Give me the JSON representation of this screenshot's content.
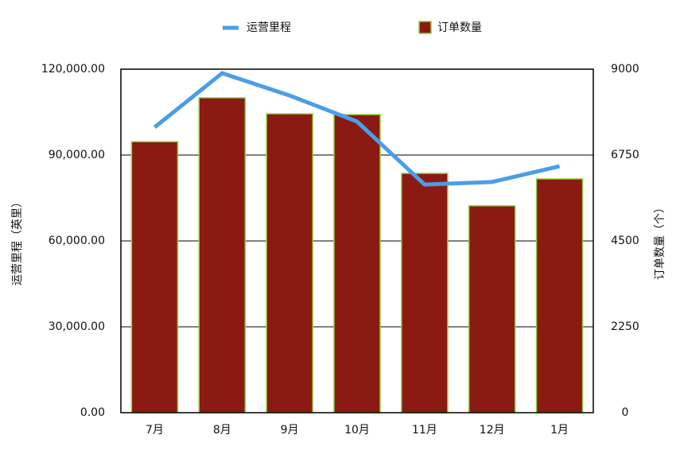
{
  "chart_data": {
    "type": "bar",
    "categories": [
      "7月",
      "8月",
      "9月",
      "10月",
      "11月",
      "12月",
      "1月"
    ],
    "series": [
      {
        "name": "运营里程",
        "type": "line",
        "axis": "y",
        "color": "#4a9ee8",
        "values": [
          99700,
          118600,
          110800,
          101700,
          79700,
          80600,
          86100
        ]
      },
      {
        "name": "订单数量",
        "type": "bar",
        "axis": "y2",
        "color": "#8b1a12",
        "edge_color": "#8fce3a",
        "values": [
          7100,
          8250,
          7830,
          7810,
          6270,
          5420,
          6125
        ]
      }
    ],
    "ylabel": "运营里程（英里）",
    "y2label": "订单数量（个）",
    "ylim": [
      0,
      120000
    ],
    "yticks": [
      {
        "value": 0,
        "label": "0.00"
      },
      {
        "value": 30000,
        "label": "30,000.00"
      },
      {
        "value": 60000,
        "label": "60,000.00"
      },
      {
        "value": 90000,
        "label": "90,000.00"
      },
      {
        "value": 120000,
        "label": "120,000.00"
      }
    ],
    "y2lim": [
      0,
      9000
    ],
    "y2ticks": [
      0,
      2250,
      4500,
      6750,
      9000
    ],
    "grid": true,
    "legend": "top"
  }
}
